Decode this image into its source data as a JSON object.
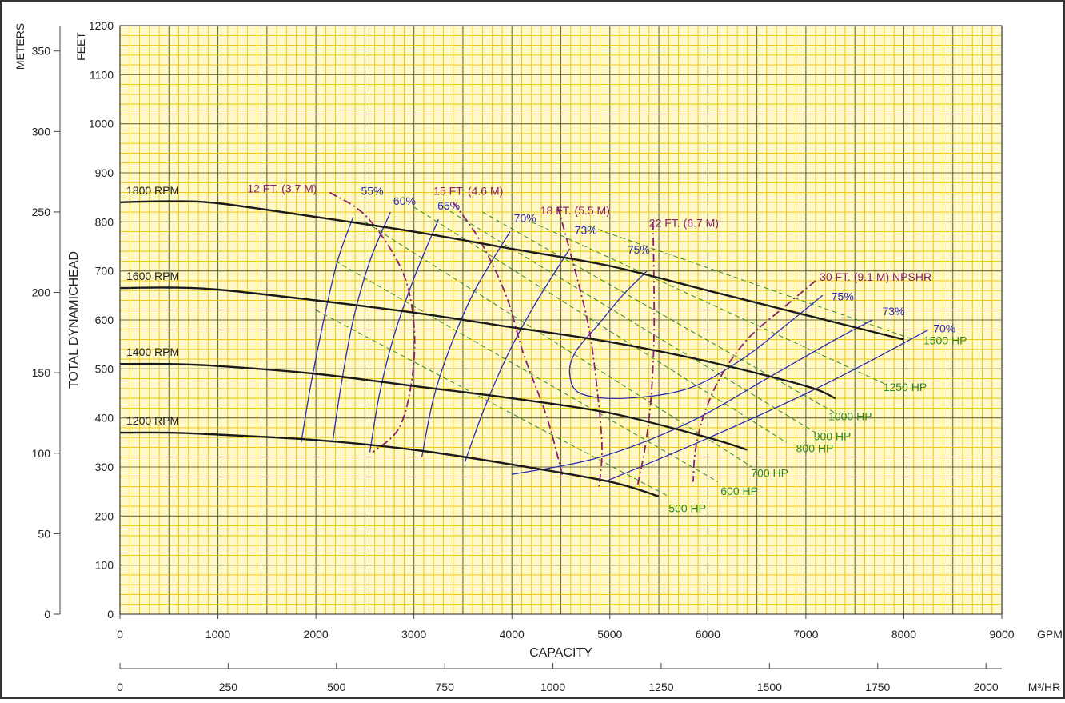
{
  "chart_data": {
    "type": "line",
    "title": "",
    "xlabel": "CAPACITY",
    "ylabel": "TOTAL DYNAMICHEAD",
    "x_unit": "GPM",
    "y_unit": "FEET",
    "xlim": [
      0,
      9000
    ],
    "ylim": [
      0,
      1200
    ],
    "x_ticks": [
      0,
      1000,
      2000,
      3000,
      4000,
      5000,
      6000,
      7000,
      8000,
      9000
    ],
    "y_ticks": [
      0,
      100,
      200,
      300,
      400,
      500,
      600,
      700,
      800,
      900,
      1000,
      1100,
      1200
    ],
    "secondary_x": {
      "unit": "M³/HR",
      "ticks": [
        0,
        250,
        500,
        750,
        1000,
        1250,
        1500,
        1750,
        2000
      ]
    },
    "secondary_y": {
      "label": "METERS",
      "ticks": [
        0,
        50,
        100,
        150,
        200,
        250,
        300,
        350
      ]
    },
    "grid": true,
    "rpm_curves": [
      {
        "name": "1800 RPM",
        "points": [
          [
            0,
            840
          ],
          [
            500,
            842
          ],
          [
            1000,
            838
          ],
          [
            2000,
            810
          ],
          [
            3000,
            780
          ],
          [
            4000,
            745
          ],
          [
            5000,
            710
          ],
          [
            6000,
            660
          ],
          [
            7000,
            610
          ],
          [
            8000,
            560
          ]
        ]
      },
      {
        "name": "1600 RPM",
        "points": [
          [
            0,
            665
          ],
          [
            500,
            666
          ],
          [
            1000,
            662
          ],
          [
            2000,
            640
          ],
          [
            3000,
            615
          ],
          [
            4000,
            585
          ],
          [
            5000,
            555
          ],
          [
            6000,
            515
          ],
          [
            7000,
            465
          ],
          [
            7300,
            440
          ]
        ]
      },
      {
        "name": "1400 RPM",
        "points": [
          [
            0,
            510
          ],
          [
            500,
            510
          ],
          [
            1000,
            506
          ],
          [
            2000,
            490
          ],
          [
            3000,
            465
          ],
          [
            4000,
            440
          ],
          [
            5000,
            410
          ],
          [
            6000,
            360
          ],
          [
            6400,
            335
          ]
        ]
      },
      {
        "name": "1200 RPM",
        "points": [
          [
            0,
            370
          ],
          [
            500,
            370
          ],
          [
            1000,
            366
          ],
          [
            2000,
            355
          ],
          [
            3000,
            335
          ],
          [
            4000,
            305
          ],
          [
            5000,
            270
          ],
          [
            5500,
            240
          ]
        ]
      }
    ],
    "efficiency_curves": [
      {
        "name": "55%",
        "label_at": [
          2460,
          855
        ],
        "points": [
          [
            1850,
            350
          ],
          [
            1950,
            470
          ],
          [
            2080,
            600
          ],
          [
            2220,
            720
          ],
          [
            2380,
            810
          ]
        ]
      },
      {
        "name": "60%",
        "label_at": [
          2790,
          835
        ],
        "points": [
          [
            2170,
            350
          ],
          [
            2260,
            470
          ],
          [
            2380,
            600
          ],
          [
            2550,
            720
          ],
          [
            2760,
            820
          ]
        ]
      },
      {
        "name": "65%",
        "label_at": [
          3240,
          825
        ],
        "points": [
          [
            2550,
            330
          ],
          [
            2650,
            450
          ],
          [
            2800,
            570
          ],
          [
            3010,
            690
          ],
          [
            3250,
            805
          ]
        ]
      },
      {
        "name": "70%",
        "label_at": [
          4020,
          800
        ],
        "points": [
          [
            3080,
            320
          ],
          [
            3200,
            440
          ],
          [
            3380,
            550
          ],
          [
            3620,
            660
          ],
          [
            3980,
            780
          ]
        ]
      },
      {
        "name": "73%",
        "label_at": [
          4640,
          775
        ],
        "points": [
          [
            3520,
            310
          ],
          [
            3720,
            420
          ],
          [
            3960,
            530
          ],
          [
            4230,
            630
          ],
          [
            4590,
            745
          ]
        ]
      },
      {
        "name": "75%",
        "label_at": [
          5180,
          735
        ],
        "points": [
          [
            5380,
            700
          ],
          [
            5130,
            650
          ],
          [
            4880,
            590
          ],
          [
            4650,
            535
          ],
          [
            4590,
            490
          ],
          [
            4700,
            450
          ],
          [
            5150,
            440
          ],
          [
            5800,
            460
          ],
          [
            6350,
            520
          ],
          [
            6800,
            590
          ],
          [
            7170,
            650
          ]
        ]
      },
      {
        "name": "75%",
        "label_at": [
          7260,
          640
        ],
        "points": []
      },
      {
        "name": "73%",
        "label_at": [
          7780,
          610
        ],
        "points": [
          [
            4000,
            285
          ],
          [
            4900,
            320
          ],
          [
            5800,
            390
          ],
          [
            6600,
            480
          ],
          [
            7300,
            560
          ],
          [
            7680,
            600
          ]
        ]
      },
      {
        "name": "70%",
        "label_at": [
          8300,
          575
        ],
        "points": [
          [
            4950,
            270
          ],
          [
            5900,
            350
          ],
          [
            6900,
            440
          ],
          [
            7600,
            510
          ],
          [
            8250,
            580
          ]
        ]
      }
    ],
    "npshr_curves": [
      {
        "name": "12 FT. (3.7 M)",
        "label_at": [
          1300,
          860
        ],
        "points": [
          [
            2140,
            860
          ],
          [
            2520,
            810
          ],
          [
            2880,
            700
          ],
          [
            3000,
            590
          ],
          [
            2980,
            480
          ],
          [
            2850,
            380
          ],
          [
            2580,
            330
          ]
        ]
      },
      {
        "name": "15 FT. (4.6 M)",
        "label_at": [
          3200,
          855
        ],
        "points": [
          [
            3400,
            840
          ],
          [
            3680,
            760
          ],
          [
            3940,
            650
          ],
          [
            4120,
            530
          ],
          [
            4360,
            400
          ],
          [
            4520,
            280
          ]
        ]
      },
      {
        "name": "18 FT. (5.5 M)",
        "label_at": [
          4290,
          815
        ],
        "points": [
          [
            4470,
            830
          ],
          [
            4620,
            720
          ],
          [
            4780,
            590
          ],
          [
            4870,
            460
          ],
          [
            4920,
            340
          ],
          [
            4890,
            260
          ]
        ]
      },
      {
        "name": "22 FT. (6.7 M)",
        "label_at": [
          5400,
          790
        ],
        "points": [
          [
            5440,
            800
          ],
          [
            5450,
            680
          ],
          [
            5450,
            560
          ],
          [
            5420,
            440
          ],
          [
            5360,
            340
          ],
          [
            5280,
            260
          ]
        ]
      },
      {
        "name": "30 FT. (9.1 M) NPSHR",
        "label_at": [
          7140,
          680
        ],
        "points": [
          [
            7100,
            680
          ],
          [
            6800,
            630
          ],
          [
            6400,
            560
          ],
          [
            6120,
            480
          ],
          [
            5950,
            400
          ],
          [
            5870,
            330
          ],
          [
            5850,
            270
          ]
        ]
      }
    ],
    "hp_lines": [
      {
        "name": "500 HP",
        "label_at": [
          5600,
          208
        ],
        "points": [
          [
            2000,
            620
          ],
          [
            5600,
            240
          ]
        ]
      },
      {
        "name": "600 HP",
        "label_at": [
          6130,
          243
        ],
        "points": [
          [
            2200,
            720
          ],
          [
            6100,
            270
          ]
        ]
      },
      {
        "name": "700 HP",
        "label_at": [
          6440,
          280
        ],
        "points": [
          [
            2500,
            800
          ],
          [
            6450,
            300
          ]
        ]
      },
      {
        "name": "800 HP",
        "label_at": [
          6900,
          330
        ],
        "points": [
          [
            3000,
            830
          ],
          [
            6800,
            350
          ]
        ]
      },
      {
        "name": "900 HP",
        "label_at": [
          7080,
          355
        ],
        "points": [
          [
            3300,
            830
          ],
          [
            7100,
            370
          ]
        ]
      },
      {
        "name": "1000 HP",
        "label_at": [
          7230,
          395
        ],
        "points": [
          [
            3700,
            820
          ],
          [
            7300,
            410
          ]
        ]
      },
      {
        "name": "1250 HP",
        "label_at": [
          7790,
          455
        ],
        "points": [
          [
            4200,
            800
          ],
          [
            7800,
            470
          ]
        ]
      },
      {
        "name": "1500 HP",
        "label_at": [
          8200,
          550
        ],
        "points": [
          [
            4800,
            790
          ],
          [
            8100,
            560
          ]
        ]
      }
    ]
  }
}
